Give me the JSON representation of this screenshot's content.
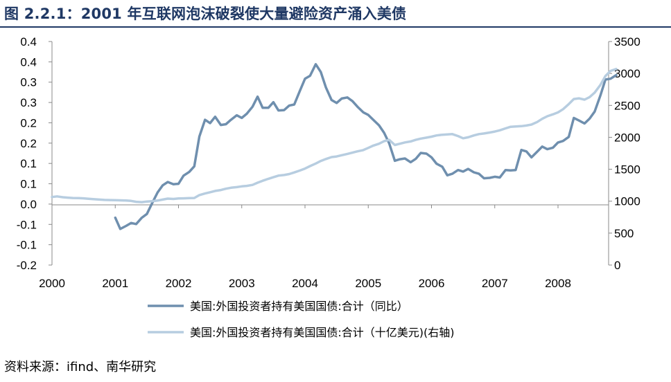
{
  "title": "图 2.2.1：2001 年互联网泡沫破裂使大量避险资产涌入美债",
  "source": "资料来源：ifind、南华研究",
  "colors": {
    "series_yoy": "#6f8fae",
    "series_level": "#b7cde0",
    "title": "#1f3864"
  },
  "chart_data": {
    "type": "line",
    "x_ticks": [
      "2000",
      "2001",
      "2002",
      "2003",
      "2004",
      "2005",
      "2006",
      "2007",
      "2008"
    ],
    "xlim": [
      2000,
      2008.8
    ],
    "y_left_ticks": [
      "0.4",
      "0.4",
      "0.3",
      "0.3",
      "0.2",
      "0.2",
      "0.1",
      "0.1",
      "0.0",
      "-0.1",
      "-0.1",
      "-0.2"
    ],
    "y_left_lim": [
      -0.2,
      0.4
    ],
    "y_right_ticks": [
      "3500",
      "3000",
      "2500",
      "2000",
      "1500",
      "1000",
      "500",
      "0"
    ],
    "y_right_lim": [
      0,
      3500
    ],
    "grid": false,
    "legend_position": "bottom",
    "series": [
      {
        "name": "美国:外国投资者持有美国国债:合计（同比）",
        "axis": "left",
        "points": [
          [
            2001.0,
            -0.073
          ],
          [
            2001.08,
            -0.103
          ],
          [
            2001.17,
            -0.095
          ],
          [
            2001.25,
            -0.087
          ],
          [
            2001.33,
            -0.09
          ],
          [
            2001.42,
            -0.073
          ],
          [
            2001.5,
            -0.063
          ],
          [
            2001.58,
            -0.035
          ],
          [
            2001.67,
            -0.005
          ],
          [
            2001.75,
            0.014
          ],
          [
            2001.83,
            0.023
          ],
          [
            2001.92,
            0.017
          ],
          [
            2002.0,
            0.018
          ],
          [
            2002.08,
            0.04
          ],
          [
            2002.17,
            0.05
          ],
          [
            2002.25,
            0.065
          ],
          [
            2002.33,
            0.145
          ],
          [
            2002.42,
            0.19
          ],
          [
            2002.5,
            0.181
          ],
          [
            2002.58,
            0.198
          ],
          [
            2002.67,
            0.176
          ],
          [
            2002.75,
            0.178
          ],
          [
            2002.83,
            0.19
          ],
          [
            2002.92,
            0.202
          ],
          [
            2003.0,
            0.195
          ],
          [
            2003.08,
            0.206
          ],
          [
            2003.17,
            0.225
          ],
          [
            2003.25,
            0.252
          ],
          [
            2003.33,
            0.222
          ],
          [
            2003.42,
            0.222
          ],
          [
            2003.5,
            0.237
          ],
          [
            2003.58,
            0.215
          ],
          [
            2003.67,
            0.216
          ],
          [
            2003.75,
            0.228
          ],
          [
            2003.83,
            0.231
          ],
          [
            2003.92,
            0.268
          ],
          [
            2004.0,
            0.3
          ],
          [
            2004.08,
            0.308
          ],
          [
            2004.17,
            0.339
          ],
          [
            2004.25,
            0.318
          ],
          [
            2004.33,
            0.277
          ],
          [
            2004.42,
            0.243
          ],
          [
            2004.5,
            0.235
          ],
          [
            2004.58,
            0.247
          ],
          [
            2004.67,
            0.25
          ],
          [
            2004.75,
            0.24
          ],
          [
            2004.83,
            0.225
          ],
          [
            2004.92,
            0.21
          ],
          [
            2005.0,
            0.203
          ],
          [
            2005.08,
            0.19
          ],
          [
            2005.17,
            0.175
          ],
          [
            2005.25,
            0.155
          ],
          [
            2005.33,
            0.127
          ],
          [
            2005.42,
            0.08
          ],
          [
            2005.5,
            0.084
          ],
          [
            2005.58,
            0.086
          ],
          [
            2005.67,
            0.076
          ],
          [
            2005.75,
            0.085
          ],
          [
            2005.83,
            0.101
          ],
          [
            2005.92,
            0.099
          ],
          [
            2006.0,
            0.089
          ],
          [
            2006.08,
            0.072
          ],
          [
            2006.17,
            0.064
          ],
          [
            2006.25,
            0.041
          ],
          [
            2006.33,
            0.045
          ],
          [
            2006.42,
            0.055
          ],
          [
            2006.5,
            0.051
          ],
          [
            2006.58,
            0.058
          ],
          [
            2006.67,
            0.049
          ],
          [
            2006.75,
            0.045
          ],
          [
            2006.83,
            0.033
          ],
          [
            2006.92,
            0.034
          ],
          [
            2007.0,
            0.037
          ],
          [
            2007.08,
            0.035
          ],
          [
            2007.17,
            0.055
          ],
          [
            2007.25,
            0.054
          ],
          [
            2007.33,
            0.055
          ],
          [
            2007.42,
            0.109
          ],
          [
            2007.5,
            0.105
          ],
          [
            2007.58,
            0.089
          ],
          [
            2007.67,
            0.104
          ],
          [
            2007.75,
            0.118
          ],
          [
            2007.83,
            0.111
          ],
          [
            2007.92,
            0.115
          ],
          [
            2008.0,
            0.129
          ],
          [
            2008.08,
            0.133
          ],
          [
            2008.17,
            0.144
          ],
          [
            2008.25,
            0.195
          ],
          [
            2008.33,
            0.188
          ],
          [
            2008.42,
            0.18
          ],
          [
            2008.5,
            0.193
          ],
          [
            2008.58,
            0.212
          ],
          [
            2008.67,
            0.255
          ],
          [
            2008.75,
            0.298
          ],
          [
            2008.83,
            0.3
          ],
          [
            2008.92,
            0.31
          ]
        ]
      },
      {
        "name": "美国:外国投资者持有美国国债:合计（十亿美元)(右轴)",
        "axis": "right",
        "points": [
          [
            2000.0,
            1065
          ],
          [
            2000.08,
            1075
          ],
          [
            2000.17,
            1062
          ],
          [
            2000.25,
            1055
          ],
          [
            2000.33,
            1050
          ],
          [
            2000.42,
            1048
          ],
          [
            2000.5,
            1045
          ],
          [
            2000.58,
            1038
          ],
          [
            2000.67,
            1030
          ],
          [
            2000.75,
            1025
          ],
          [
            2000.83,
            1020
          ],
          [
            2000.92,
            1018
          ],
          [
            2001.0,
            1015
          ],
          [
            2001.08,
            1013
          ],
          [
            2001.17,
            1010
          ],
          [
            2001.25,
            1005
          ],
          [
            2001.33,
            990
          ],
          [
            2001.42,
            985
          ],
          [
            2001.5,
            995
          ],
          [
            2001.58,
            1000
          ],
          [
            2001.67,
            1010
          ],
          [
            2001.75,
            1025
          ],
          [
            2001.83,
            1040
          ],
          [
            2001.92,
            1035
          ],
          [
            2002.0,
            1042
          ],
          [
            2002.08,
            1045
          ],
          [
            2002.17,
            1048
          ],
          [
            2002.25,
            1050
          ],
          [
            2002.33,
            1095
          ],
          [
            2002.42,
            1120
          ],
          [
            2002.5,
            1140
          ],
          [
            2002.58,
            1160
          ],
          [
            2002.67,
            1175
          ],
          [
            2002.75,
            1195
          ],
          [
            2002.83,
            1210
          ],
          [
            2002.92,
            1220
          ],
          [
            2003.0,
            1232
          ],
          [
            2003.08,
            1240
          ],
          [
            2003.17,
            1255
          ],
          [
            2003.25,
            1290
          ],
          [
            2003.33,
            1320
          ],
          [
            2003.42,
            1350
          ],
          [
            2003.5,
            1375
          ],
          [
            2003.58,
            1400
          ],
          [
            2003.67,
            1410
          ],
          [
            2003.75,
            1425
          ],
          [
            2003.83,
            1450
          ],
          [
            2003.92,
            1480
          ],
          [
            2004.0,
            1510
          ],
          [
            2004.08,
            1550
          ],
          [
            2004.17,
            1590
          ],
          [
            2004.25,
            1630
          ],
          [
            2004.33,
            1660
          ],
          [
            2004.42,
            1690
          ],
          [
            2004.5,
            1700
          ],
          [
            2004.58,
            1720
          ],
          [
            2004.67,
            1740
          ],
          [
            2004.75,
            1760
          ],
          [
            2004.83,
            1780
          ],
          [
            2004.92,
            1800
          ],
          [
            2005.0,
            1835
          ],
          [
            2005.08,
            1870
          ],
          [
            2005.17,
            1900
          ],
          [
            2005.25,
            1940
          ],
          [
            2005.33,
            1960
          ],
          [
            2005.42,
            1880
          ],
          [
            2005.5,
            1900
          ],
          [
            2005.58,
            1920
          ],
          [
            2005.67,
            1935
          ],
          [
            2005.75,
            1960
          ],
          [
            2005.83,
            1980
          ],
          [
            2005.92,
            1995
          ],
          [
            2006.0,
            2010
          ],
          [
            2006.08,
            2030
          ],
          [
            2006.17,
            2040
          ],
          [
            2006.25,
            2045
          ],
          [
            2006.33,
            2050
          ],
          [
            2006.42,
            2020
          ],
          [
            2006.5,
            1985
          ],
          [
            2006.58,
            2000
          ],
          [
            2006.67,
            2030
          ],
          [
            2006.75,
            2050
          ],
          [
            2006.83,
            2060
          ],
          [
            2006.92,
            2075
          ],
          [
            2007.0,
            2090
          ],
          [
            2007.08,
            2110
          ],
          [
            2007.17,
            2140
          ],
          [
            2007.25,
            2165
          ],
          [
            2007.33,
            2170
          ],
          [
            2007.42,
            2175
          ],
          [
            2007.5,
            2185
          ],
          [
            2007.58,
            2200
          ],
          [
            2007.67,
            2240
          ],
          [
            2007.75,
            2290
          ],
          [
            2007.83,
            2330
          ],
          [
            2007.92,
            2360
          ],
          [
            2008.0,
            2390
          ],
          [
            2008.08,
            2440
          ],
          [
            2008.17,
            2520
          ],
          [
            2008.25,
            2600
          ],
          [
            2008.33,
            2610
          ],
          [
            2008.42,
            2590
          ],
          [
            2008.5,
            2630
          ],
          [
            2008.58,
            2700
          ],
          [
            2008.67,
            2820
          ],
          [
            2008.75,
            2960
          ],
          [
            2008.83,
            3040
          ],
          [
            2008.92,
            3070
          ]
        ]
      }
    ]
  }
}
